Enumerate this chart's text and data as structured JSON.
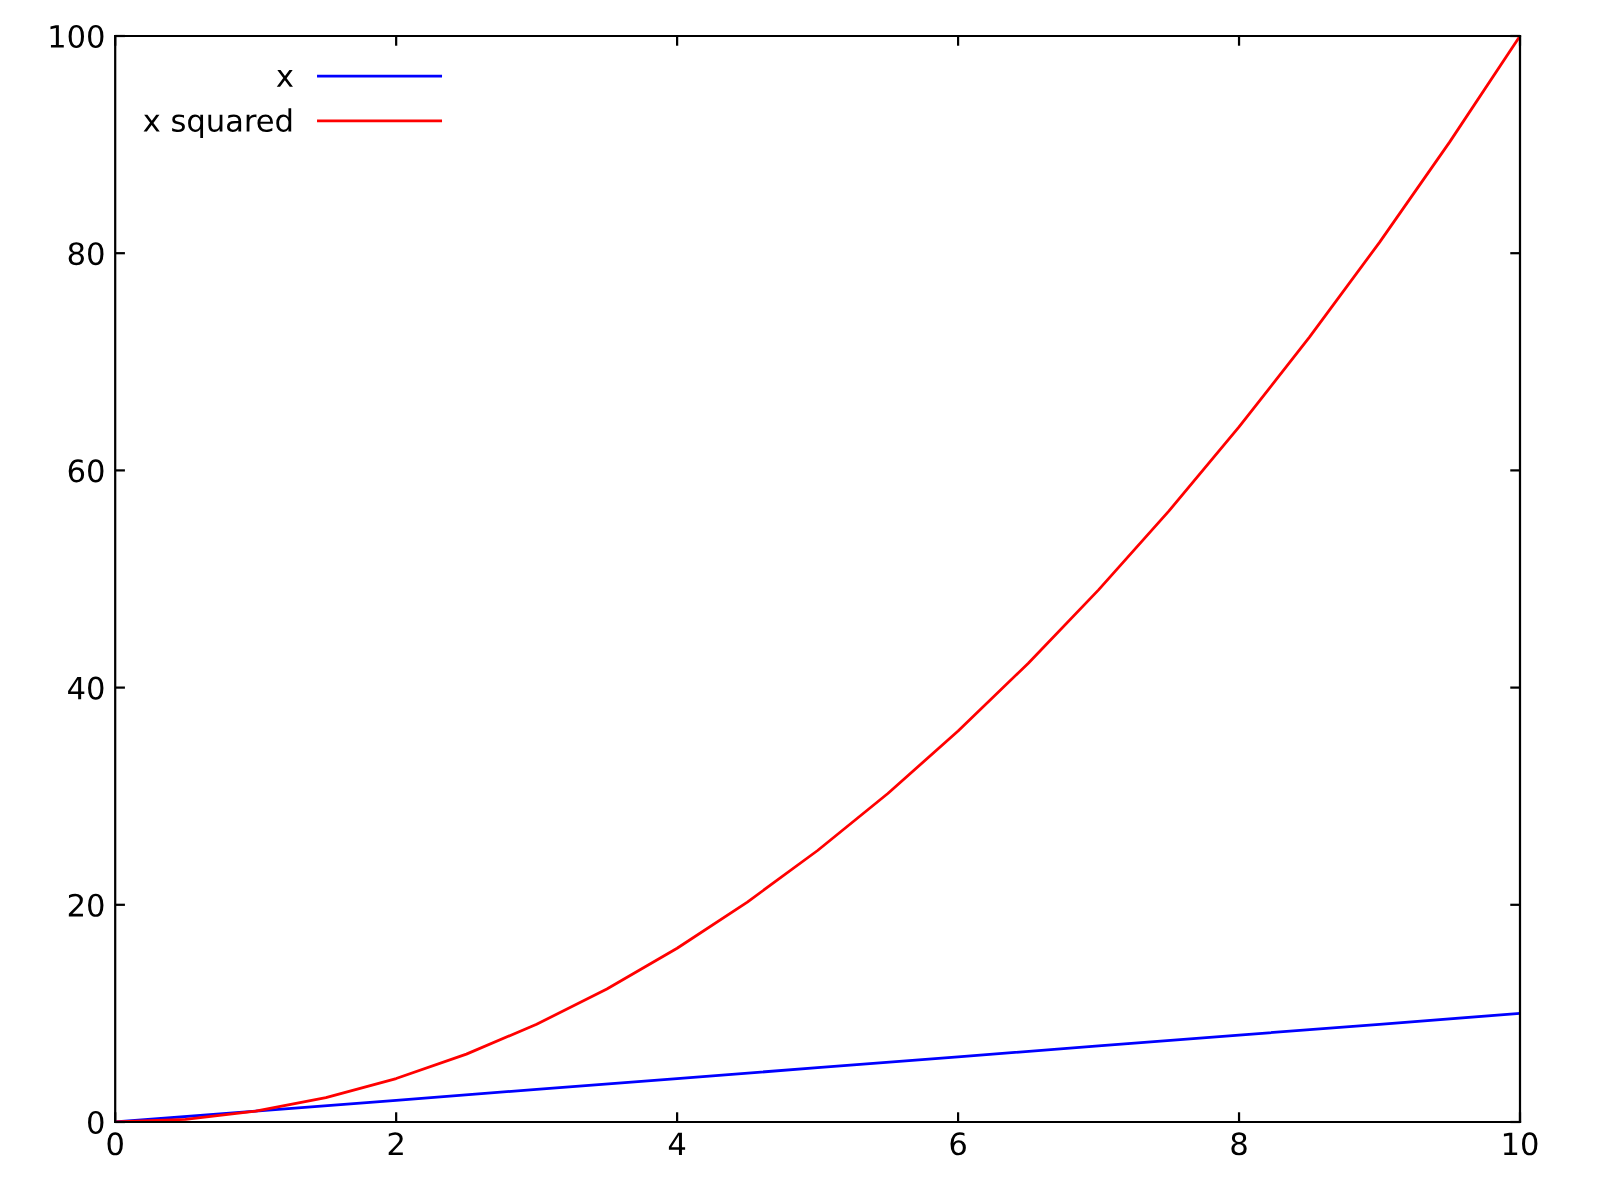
{
  "chart_data": {
    "type": "line",
    "x": [
      0,
      1,
      2,
      3,
      4,
      5,
      6,
      7,
      8,
      9,
      10
    ],
    "series": [
      {
        "name": "x",
        "color": "#0000ff",
        "values": [
          0,
          1,
          2,
          3,
          4,
          5,
          6,
          7,
          8,
          9,
          10
        ]
      },
      {
        "name": "x squared",
        "color": "#ff0000",
        "x": [
          0,
          0.5,
          1,
          1.5,
          2,
          2.5,
          3,
          3.5,
          4,
          4.5,
          5,
          5.5,
          6,
          6.5,
          7,
          7.5,
          8,
          8.5,
          9,
          9.5,
          10
        ],
        "values": [
          0,
          0.25,
          1,
          2.25,
          4,
          6.25,
          9,
          12.25,
          16,
          20.25,
          25,
          30.25,
          36,
          42.25,
          49,
          56.25,
          64,
          72.25,
          81,
          90.25,
          100
        ]
      }
    ],
    "xlim": [
      0,
      10
    ],
    "xticks": [
      0,
      2,
      4,
      6,
      8,
      10
    ],
    "ylim": [
      0,
      100
    ],
    "yticks": [
      0,
      20,
      40,
      60,
      80,
      100
    ],
    "grid": false,
    "legend": "top left",
    "marker": "none",
    "line_style": "solid"
  }
}
